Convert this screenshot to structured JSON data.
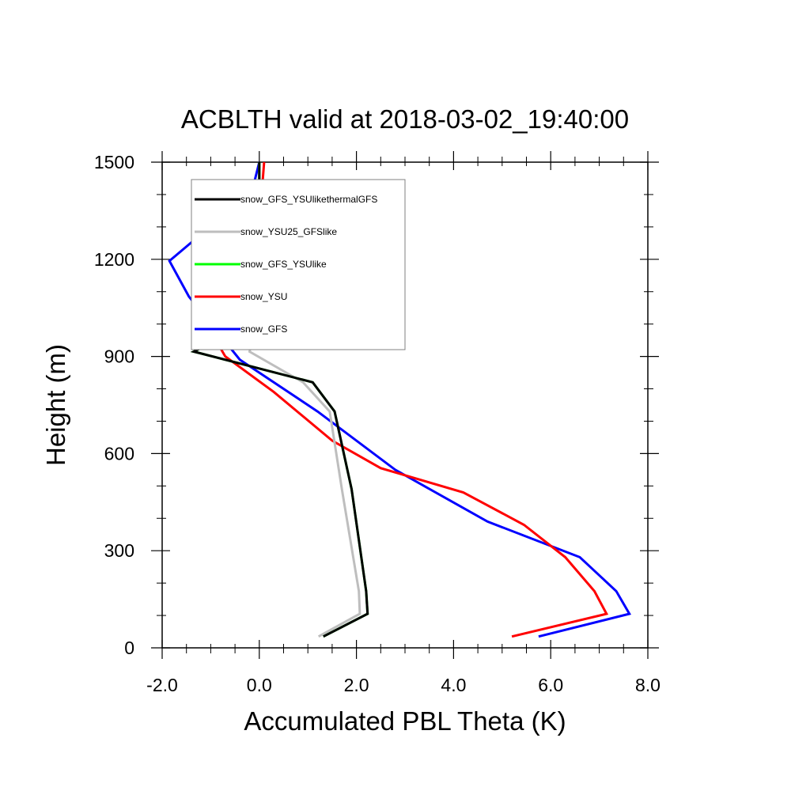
{
  "chart_data": {
    "type": "line",
    "title": "ACBLTH valid at 2018-03-02_19:40:00",
    "xlabel": "Accumulated PBL Theta (K)",
    "ylabel": "Height (m)",
    "xlim": [
      -2.0,
      8.0
    ],
    "ylim": [
      0,
      1500
    ],
    "xticks": [
      -2.0,
      0.0,
      2.0,
      4.0,
      6.0,
      8.0
    ],
    "xtick_labels": [
      "-2.0",
      "0.0",
      "2.0",
      "4.0",
      "6.0",
      "8.0"
    ],
    "yticks": [
      0,
      300,
      600,
      900,
      1200,
      1500
    ],
    "ytick_labels": [
      "0",
      "300",
      "600",
      "900",
      "1200",
      "1500"
    ],
    "grid": false,
    "legend": "top-left",
    "series": [
      {
        "name": "snow_GFS_YSUlikethermalGFS",
        "color": "#000000",
        "points": [
          [
            1.32,
            35
          ],
          [
            2.23,
            105
          ],
          [
            2.2,
            175
          ],
          [
            1.9,
            490
          ],
          [
            1.55,
            730
          ],
          [
            1.1,
            820
          ],
          [
            -1.35,
            915
          ],
          [
            -0.1,
            1010
          ],
          [
            0.0,
            1090
          ],
          [
            0.0,
            1500
          ]
        ]
      },
      {
        "name": "snow_YSU25_GFSlike",
        "color": "#bebebe",
        "points": [
          [
            1.22,
            35
          ],
          [
            2.07,
            105
          ],
          [
            2.05,
            175
          ],
          [
            1.7,
            490
          ],
          [
            1.45,
            730
          ],
          [
            0.9,
            820
          ],
          [
            -0.2,
            915
          ],
          [
            -0.05,
            1010
          ],
          [
            0.0,
            1090
          ],
          [
            0.0,
            1500
          ]
        ]
      },
      {
        "name": "snow_GFS_YSUlike",
        "color": "#00ff00",
        "points": [
          [
            1.32,
            35
          ],
          [
            2.23,
            105
          ],
          [
            2.2,
            175
          ],
          [
            1.9,
            490
          ],
          [
            1.55,
            730
          ],
          [
            1.1,
            820
          ],
          [
            -1.35,
            915
          ],
          [
            -0.1,
            1010
          ],
          [
            0.0,
            1090
          ],
          [
            0.0,
            1500
          ]
        ]
      },
      {
        "name": "snow_YSU",
        "color": "#ff0000",
        "points": [
          [
            5.2,
            35
          ],
          [
            7.15,
            105
          ],
          [
            6.9,
            175
          ],
          [
            6.3,
            280
          ],
          [
            5.45,
            380
          ],
          [
            4.2,
            480
          ],
          [
            2.5,
            555
          ],
          [
            1.5,
            640
          ],
          [
            0.3,
            790
          ],
          [
            -0.7,
            900
          ],
          [
            -1.05,
            990
          ],
          [
            -0.6,
            1090
          ],
          [
            -0.05,
            1210
          ],
          [
            0.1,
            1500
          ]
        ]
      },
      {
        "name": "snow_GFS",
        "color": "#0000ff",
        "points": [
          [
            5.75,
            35
          ],
          [
            7.62,
            105
          ],
          [
            7.35,
            175
          ],
          [
            6.6,
            280
          ],
          [
            4.7,
            390
          ],
          [
            2.8,
            550
          ],
          [
            1.2,
            730
          ],
          [
            -0.4,
            890
          ],
          [
            -1.45,
            1085
          ],
          [
            -1.85,
            1195
          ],
          [
            -0.15,
            1410
          ],
          [
            0.0,
            1500
          ]
        ]
      }
    ]
  }
}
